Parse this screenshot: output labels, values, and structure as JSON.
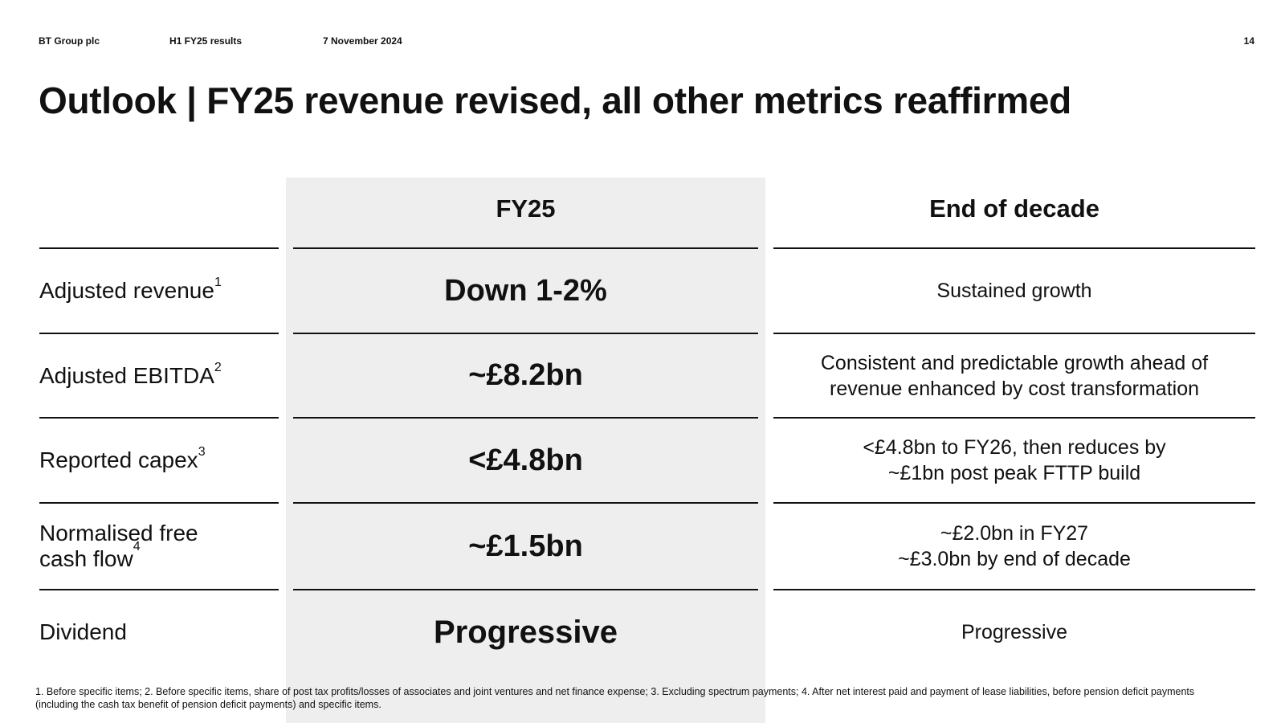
{
  "header": {
    "company": "BT Group plc",
    "report": "H1 FY25 results",
    "date": "7 November 2024",
    "page_number": "14"
  },
  "title": "Outlook | FY25 revenue revised, all other metrics reaffirmed",
  "columns": {
    "fy25": "FY25",
    "end_of_decade": "End of decade"
  },
  "rows": [
    {
      "label": "Adjusted revenue",
      "footnote_ref": "1",
      "fy25": "Down 1-2%",
      "end_lines": [
        "Sustained growth"
      ]
    },
    {
      "label": "Adjusted EBITDA",
      "footnote_ref": "2",
      "fy25": "~£8.2bn",
      "end_lines": [
        "Consistent and predictable growth ahead of",
        "revenue enhanced by cost transformation"
      ]
    },
    {
      "label": "Reported capex",
      "footnote_ref": "3",
      "fy25": "<£4.8bn",
      "end_lines": [
        "<£4.8bn to FY26, then reduces by",
        "~£1bn post peak FTTP build"
      ]
    },
    {
      "label_lines": [
        "Normalised free",
        "cash flow"
      ],
      "footnote_ref": "4",
      "fy25": "~£1.5bn",
      "end_lines": [
        "~£2.0bn in FY27",
        "~£3.0bn by end of decade"
      ]
    },
    {
      "label": "Dividend",
      "fy25": "Progressive",
      "end_lines": [
        "Progressive"
      ]
    }
  ],
  "footnote": "1. Before specific items; 2. Before specific items, share of post tax profits/losses of associates and joint ventures and net finance expense; 3. Excluding spectrum payments; 4. After net interest paid and payment of lease liabilities, before pension deficit payments (including the cash tax benefit of pension deficit payments) and specific items."
}
